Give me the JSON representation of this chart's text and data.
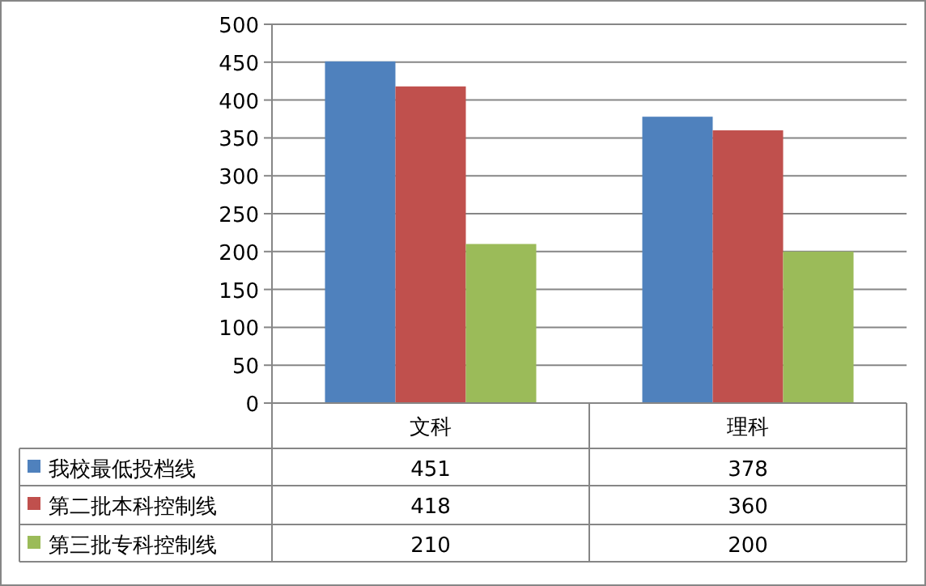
{
  "chart_data": {
    "type": "bar",
    "categories": [
      "文科",
      "理科"
    ],
    "series": [
      {
        "name": "我校最低投档线",
        "color": "#4f81bd",
        "values": [
          451,
          378
        ]
      },
      {
        "name": "第二批本科控制线",
        "color": "#c0504d",
        "values": [
          418,
          360
        ]
      },
      {
        "name": "第三批专科控制线",
        "color": "#9bbb59",
        "values": [
          210,
          200
        ]
      }
    ],
    "ylim": [
      0,
      500
    ],
    "yticks": [
      0,
      50,
      100,
      150,
      200,
      250,
      300,
      350,
      400,
      450,
      500
    ],
    "grid": "y",
    "legend": "bottom",
    "data_labels": true
  }
}
